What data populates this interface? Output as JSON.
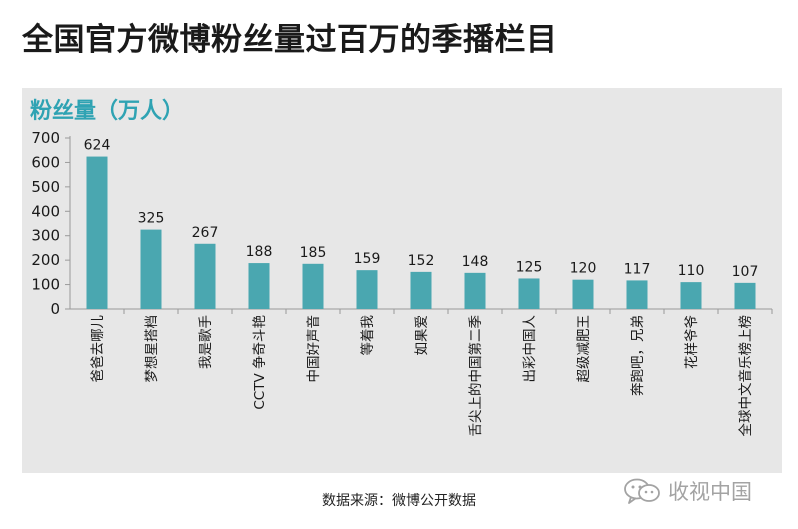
{
  "title": "全国官方微博粉丝量过百万的季播栏目",
  "source": "数据来源：微博公开数据",
  "watermark": {
    "text": "收视中国",
    "icon": "wechat-icon"
  },
  "colors": {
    "bar": "#4aa7b0",
    "ylabel": "#2fa3b3",
    "panel": "#e7e7e7",
    "axis": "#9a9a9a"
  },
  "chart_data": {
    "type": "bar",
    "ylabel": "粉丝量（万人）",
    "xlabel": "",
    "ylim": [
      0,
      700
    ],
    "yticks": [
      0,
      100,
      200,
      300,
      400,
      500,
      600,
      700
    ],
    "categories": [
      "爸爸去哪儿",
      "梦想星搭档",
      "我是歌手",
      "CCTV 争奇斗艳",
      "中国好声音",
      "等着我",
      "如果爱",
      "舌尖上的中国第二季",
      "出彩中国人",
      "超级减肥王",
      "奔跑吧，兄弟",
      "花样爷爷",
      "全球中文音乐榜上榜"
    ],
    "values": [
      624,
      325,
      267,
      188,
      185,
      159,
      152,
      148,
      125,
      120,
      117,
      110,
      107
    ],
    "grid": false,
    "legend": "none"
  }
}
